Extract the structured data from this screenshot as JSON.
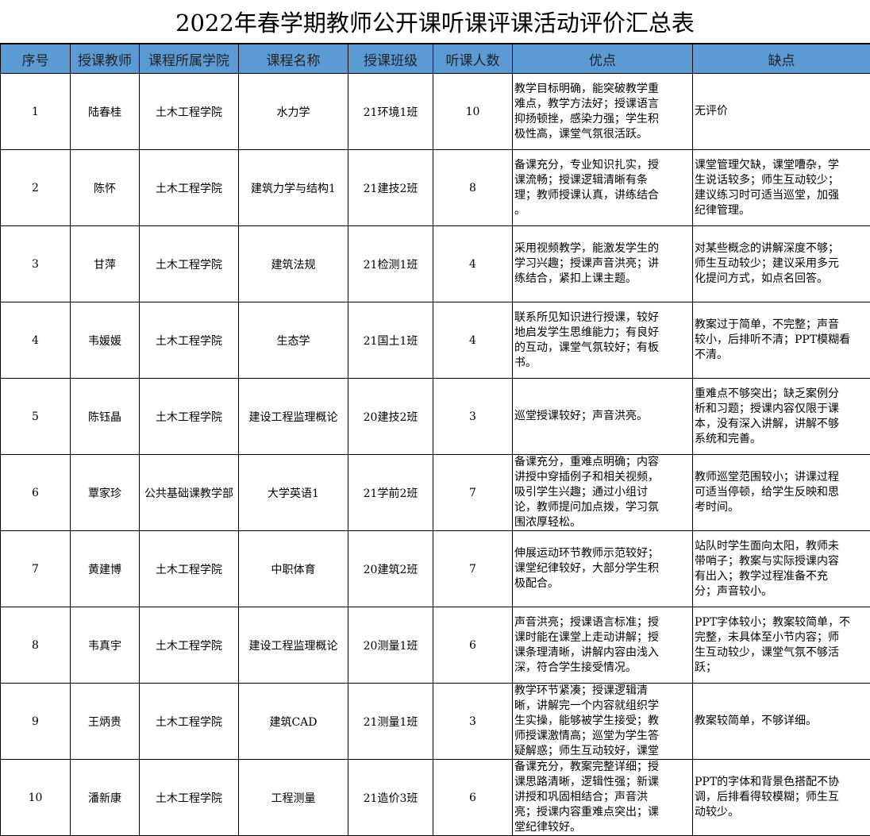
{
  "title": "2022年春学期教师公开课听课评课活动评价汇总表",
  "header_color": "#5b9bd5",
  "columns": [
    "序号",
    "授课教师",
    "课程所属学院",
    "课程名称",
    "授课班级",
    "听课人数",
    "优点",
    "缺点"
  ],
  "rows": [
    {
      "no": "1",
      "teacher": "陆春桂",
      "college": "土木工程学院",
      "course": "水力学",
      "class": "21环境1班",
      "count": "10",
      "pros": "教学目标明确，能突破教学重\n难点，教学方法好；授课语言\n抑扬顿挫，感染力强；学生积\n极性高，课堂气氛很活跃。",
      "cons": "无评价"
    },
    {
      "no": "2",
      "teacher": "陈怀",
      "college": "土木工程学院",
      "course": "建筑力学与结构1",
      "class": "21建技2班",
      "count": "8",
      "pros": "备课充分，专业知识扎实，授\n课流畅；授课逻辑清晰有条\n理；教师授课认真，讲练结合\n。",
      "cons": "课堂管理欠缺，课堂嘈杂，学\n生说话较多；师生互动较少；\n建议练习时可适当巡堂，加强\n纪律管理。"
    },
    {
      "no": "3",
      "teacher": "甘萍",
      "college": "土木工程学院",
      "course": "建筑法规",
      "class": "21检测1班",
      "count": "4",
      "pros": "采用视频教学，能激发学生的\n学习兴趣；授课声音洪亮；讲\n练结合，紧扣上课主题。",
      "cons": "对某些概念的讲解深度不够；\n师生互动较少；建议采用多元\n化提问方式，如点名回答。"
    },
    {
      "no": "4",
      "teacher": "韦媛媛",
      "college": "土木工程学院",
      "course": "生态学",
      "class": "21国土1班",
      "count": "4",
      "pros": "联系所见知识进行授课，较好\n地启发学生思维能力；有良好\n的互动，课堂气氛较好；有板\n书。",
      "cons": "教案过于简单，不完整；声音\n较小，后排听不清；PPT模糊看\n不清。"
    },
    {
      "no": "5",
      "teacher": "陈钰晶",
      "college": "土木工程学院",
      "course": "建设工程监理概论",
      "class": "20建技2班",
      "count": "3",
      "pros": "巡堂授课较好；声音洪亮。",
      "cons": "重难点不够突出；缺乏案例分\n析和习题；授课内容仅限于课\n本，没有深入讲解，讲解不够\n系统和完善。"
    },
    {
      "no": "6",
      "teacher": "覃家珍",
      "college": "公共基础课教学部",
      "course": "大学英语1",
      "class": "21学前2班",
      "count": "7",
      "pros": "备课充分，重难点明确；内容\n讲授中穿插例子和相关视频，\n吸引学生兴趣；通过小组讨\n论，教师提问加点拨，学习氛\n围浓厚轻松。",
      "cons": "教师巡堂范围较小；讲课过程\n可适当停顿，给学生反映和思\n考时间。"
    },
    {
      "no": "7",
      "teacher": "黄建博",
      "college": "土木工程学院",
      "course": "中职体育",
      "class": "20建筑2班",
      "count": "7",
      "pros": "伸展运动环节教师示范较好；\n课堂纪律较好，大部分学生积\n极配合。",
      "cons": "站队时学生面向太阳，教师未\n带哨子；教案与实际授课内容\n有出入；教学过程准备不充\n分；声音较小。"
    },
    {
      "no": "8",
      "teacher": "韦真宇",
      "college": "土木工程学院",
      "course": "建设工程监理概论",
      "class": "20测量1班",
      "count": "6",
      "pros": "声音洪亮；授课语言标准；授\n课时能在课堂上走动讲解；授\n课条理清晰，讲解内容由浅入\n深，符合学生接受情况。",
      "cons": "PPT字体较小；教案较简单，不\n完整，未具体至小节内容；师\n生互动较少，课堂气氛不够活\n跃；"
    },
    {
      "no": "9",
      "teacher": "王炳贵",
      "college": "土木工程学院",
      "course": "建筑CAD",
      "class": "21测量1班",
      "count": "3",
      "pros": "教学环节紧凑；授课逻辑清\n晰，讲解完一个内容就组织学\n生实操，能够被学生接受；教\n师授课激情高；巡堂为学生答\n疑解惑；师生互动较好，课堂",
      "cons": "教案较简单，不够详细。"
    },
    {
      "no": "10",
      "teacher": "潘新康",
      "college": "土木工程学院",
      "course": "工程测量",
      "class": "21造价3班",
      "count": "6",
      "pros": "备课充分，教案完整详细；授\n课思路清晰，逻辑性强；新课\n讲授和巩固相结合；声音洪\n亮；授课内容重难点突出；课\n堂纪律较好。",
      "cons": "PPT的字体和背景色搭配不协\n调，后排看得较模糊；师生互\n动较少。"
    }
  ]
}
